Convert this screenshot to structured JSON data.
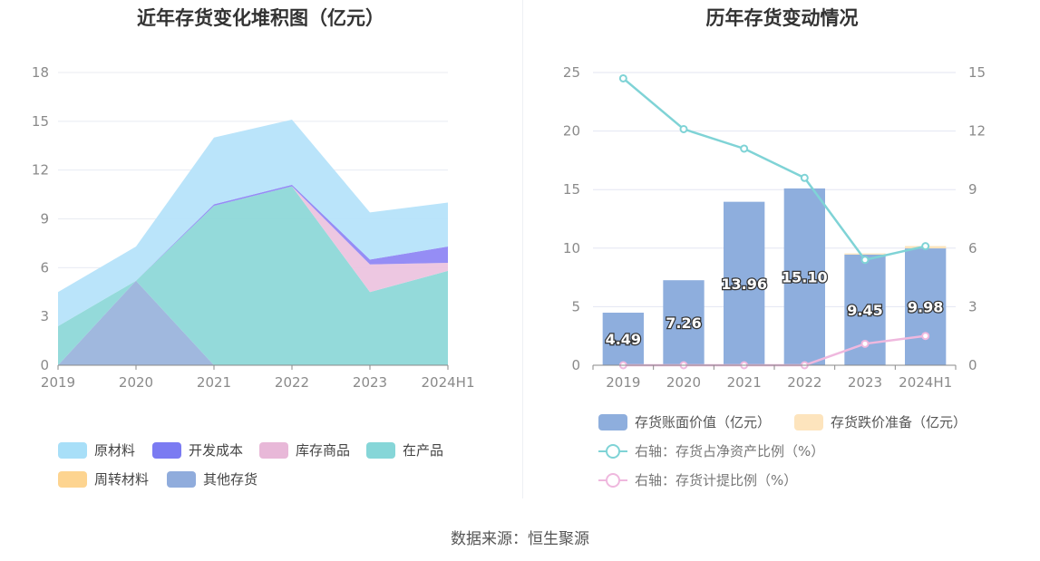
{
  "source_text": "数据来源：恒生聚源",
  "chart_data": [
    {
      "type": "area",
      "stacked": true,
      "title": "近年存货变化堆积图（亿元）",
      "categories": [
        "2019",
        "2020",
        "2021",
        "2022",
        "2023",
        "2024H1"
      ],
      "ylim": [
        0,
        18
      ],
      "yticks": [
        "0",
        "3",
        "6",
        "9",
        "12",
        "15",
        "18"
      ],
      "series": [
        {
          "name": "其他存货",
          "color": "#9bb4dc",
          "values": [
            0.0,
            5.2,
            0.0,
            0.0,
            0.0,
            0.0
          ]
        },
        {
          "name": "在产品",
          "color": "#8ed8d8",
          "values": [
            2.4,
            0.0,
            9.8,
            11.0,
            4.5,
            5.8
          ]
        },
        {
          "name": "库存商品",
          "color": "#ecc4df",
          "values": [
            0.0,
            0.0,
            0.0,
            0.0,
            1.7,
            0.5
          ]
        },
        {
          "name": "开发成本",
          "color": "#8f87f4",
          "values": [
            0.0,
            0.0,
            0.1,
            0.1,
            0.3,
            1.0
          ]
        },
        {
          "name": "周转材料",
          "color": "#fdd38e",
          "values": [
            0.0,
            0.0,
            0.0,
            0.0,
            0.0,
            0.0
          ]
        },
        {
          "name": "原材料",
          "color": "#b6e3fa",
          "values": [
            2.1,
            2.1,
            4.1,
            4.0,
            2.9,
            2.7
          ]
        }
      ],
      "legend": [
        {
          "name": "原材料",
          "color": "#a8dff8"
        },
        {
          "name": "开发成本",
          "color": "#7b7bf2"
        },
        {
          "name": "库存商品",
          "color": "#e8b8d8"
        },
        {
          "name": "在产品",
          "color": "#86d6d8"
        },
        {
          "name": "周转材料",
          "color": "#fdd490"
        },
        {
          "name": "其他存货",
          "color": "#90acdc"
        }
      ],
      "legend_position": "bottom"
    },
    {
      "type": "bar+line",
      "title": "历年存货变动情况",
      "categories": [
        "2019",
        "2020",
        "2021",
        "2022",
        "2023",
        "2024H1"
      ],
      "ylim_left": [
        0,
        25
      ],
      "yticks_left": [
        "0",
        "5",
        "10",
        "15",
        "20",
        "25"
      ],
      "ylim_right": [
        0,
        15
      ],
      "yticks_right": [
        "0",
        "3",
        "6",
        "9",
        "12",
        "15"
      ],
      "bars": [
        {
          "name": "存货账面价值（亿元）",
          "color": "#8eaedd",
          "values": [
            4.49,
            7.26,
            13.96,
            15.1,
            9.45,
            9.98
          ],
          "labels": [
            "4.49",
            "7.26",
            "13.96",
            "15.10",
            "9.45",
            "9.98"
          ]
        },
        {
          "name": "存货跌价准备（亿元）",
          "color": "#fde4bd",
          "values": [
            0.0,
            0.0,
            0.0,
            0.0,
            0.1,
            0.2
          ]
        }
      ],
      "lines": [
        {
          "name": "右轴：存货占净资产比例（%）",
          "color": "#7fd3d6",
          "axis": "right",
          "values": [
            14.7,
            12.1,
            11.1,
            9.6,
            5.4,
            6.1
          ]
        },
        {
          "name": "右轴：存货计提比例（%）",
          "color": "#efb8de",
          "axis": "right",
          "values": [
            0.0,
            0.0,
            0.0,
            0.0,
            1.1,
            1.5
          ]
        }
      ],
      "legend_position": "bottom"
    }
  ]
}
